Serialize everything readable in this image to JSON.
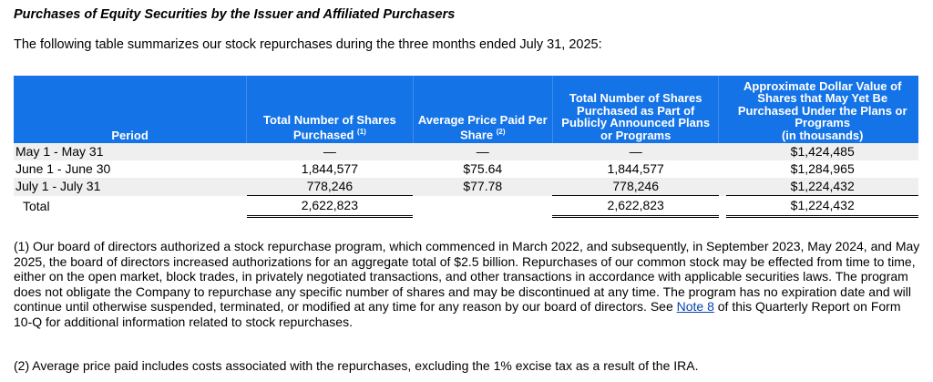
{
  "title": "Purchases of Equity Securities by the Issuer and Affiliated Purchasers",
  "intro": "The following table summarizes our stock repurchases during the three months ended July 31, 2025:",
  "table": {
    "headers": {
      "period": "Period",
      "total_shares": "Total Number of Shares Purchased",
      "total_shares_note": "(1)",
      "avg_price": "Average Price Paid Per Share",
      "avg_price_note": "(2)",
      "public_plans": "Total Number of Shares Purchased as Part of Publicly Announced Plans or Programs",
      "approx_value": "Approximate Dollar Value of Shares that May Yet Be Purchased Under the Plans or Programs",
      "approx_value_unit": "(in thousands)"
    },
    "rows": [
      {
        "period": "May 1 - May 31",
        "total_shares": "—",
        "avg_price": "—",
        "public_plans": "—",
        "approx_value": "$1,424,485"
      },
      {
        "period": "June 1 - June 30",
        "total_shares": "1,844,577",
        "avg_price": "$75.64",
        "public_plans": "1,844,577",
        "approx_value": "$1,284,965"
      },
      {
        "period": "July 1 - July 31",
        "total_shares": "778,246",
        "avg_price": "$77.78",
        "public_plans": "778,246",
        "approx_value": "$1,224,432"
      }
    ],
    "total": {
      "period": "Total",
      "total_shares": "2,622,823",
      "public_plans": "2,622,823",
      "approx_value": "$1,224,432"
    }
  },
  "footnotes": {
    "note1_before": "(1) Our board of directors authorized a stock repurchase program, which commenced in March 2022, and subsequently, in September 2023, May 2024, and May 2025, the board of directors increased authorizations for an aggregate total of $2.5 billion. Repurchases of our common stock may be effected from time to time, either on the open market, block trades, in privately negotiated transactions, and other transactions in accordance with applicable securities laws. The program does not obligate the Company to repurchase any specific number of shares and may be discontinued at any time. The program has no expiration date and will continue until otherwise suspended, terminated, or modified at any time for any reason by our board of directors. See ",
    "note1_link": "Note 8",
    "note1_after": " of this Quarterly Report on Form 10-Q for additional information related to stock repurchases.",
    "note2": "(2) Average price paid includes costs associated with the repurchases, excluding the 1% excise tax as a result of the IRA."
  },
  "colors": {
    "header_bg": "#1473e6",
    "link": "#0645ad"
  }
}
